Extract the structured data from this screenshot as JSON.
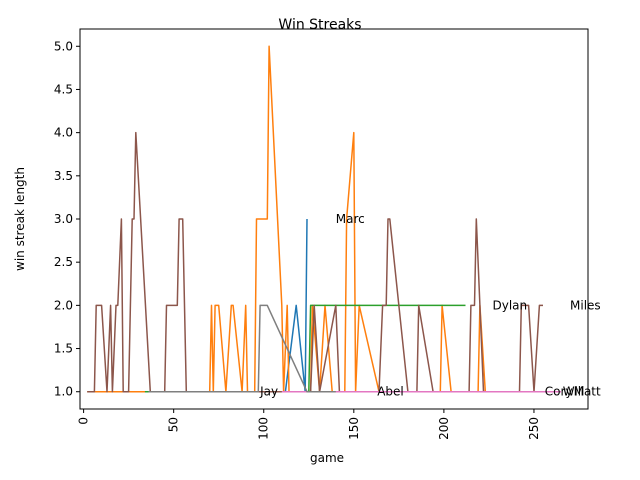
{
  "chart_data": {
    "type": "line",
    "title": "Win Streaks",
    "xlabel": "game",
    "ylabel": "win streak length",
    "xlim": [
      -2,
      280
    ],
    "ylim": [
      0.8,
      5.2
    ],
    "x_ticks": [
      0,
      50,
      100,
      150,
      200,
      250
    ],
    "y_ticks": [
      1.0,
      1.5,
      2.0,
      2.5,
      3.0,
      3.5,
      4.0,
      4.5,
      5.0
    ],
    "y_tick_labels": [
      "1.0",
      "1.5",
      "2.0",
      "2.5",
      "3.0",
      "3.5",
      "4.0",
      "4.5",
      "5.0"
    ],
    "x_tick_labels": [
      "0",
      "50",
      "100",
      "150",
      "200",
      "250"
    ],
    "grid": false,
    "series": [
      {
        "name": "Marc",
        "color": "#1f77b4",
        "points": [
          [
            112,
            1
          ],
          [
            118,
            2
          ],
          [
            123,
            1
          ],
          [
            124,
            3
          ]
        ]
      },
      {
        "name": "Jay",
        "color": "#ff7f0e",
        "points": [
          [
            2,
            1
          ],
          [
            70,
            1
          ],
          [
            71,
            2
          ],
          [
            72,
            1
          ],
          [
            73,
            2
          ],
          [
            75,
            2
          ],
          [
            79,
            1
          ],
          [
            82,
            2
          ],
          [
            83,
            2
          ],
          [
            88,
            1
          ],
          [
            90,
            2
          ],
          [
            91,
            1
          ],
          [
            95,
            1
          ],
          [
            96,
            3
          ],
          [
            102,
            3
          ],
          [
            103,
            5
          ],
          [
            110,
            2
          ],
          [
            111,
            1
          ],
          [
            113,
            2
          ],
          [
            114,
            1
          ],
          [
            126,
            1
          ],
          [
            127,
            2
          ],
          [
            131,
            1
          ],
          [
            134,
            2
          ],
          [
            138,
            1
          ],
          [
            145,
            1
          ],
          [
            146,
            3
          ],
          [
            150,
            4
          ],
          [
            151,
            1
          ],
          [
            153,
            2
          ],
          [
            164,
            1
          ],
          [
            198,
            1
          ],
          [
            199,
            2
          ],
          [
            204,
            1
          ],
          [
            219,
            1
          ],
          [
            220,
            2
          ],
          [
            223,
            1
          ],
          [
            250,
            1
          ]
        ]
      },
      {
        "name": "Dylan",
        "color": "#2ca02c",
        "points": [
          [
            34,
            1
          ],
          [
            125,
            1
          ],
          [
            126,
            2
          ],
          [
            212,
            2
          ]
        ]
      },
      {
        "name": "Abel",
        "color": "#d62728",
        "points": [
          [
            138,
            1
          ],
          [
            160,
            1
          ]
        ]
      },
      {
        "name": "Cory",
        "color": "#9467bd",
        "points": [
          [
            150,
            1
          ],
          [
            250,
            1
          ]
        ]
      },
      {
        "name": "Miles",
        "color": "#8c564b",
        "points": [
          [
            2,
            1
          ],
          [
            6,
            1
          ],
          [
            7,
            2
          ],
          [
            10,
            2
          ],
          [
            13,
            1
          ],
          [
            15,
            2
          ],
          [
            16,
            1
          ],
          [
            18,
            2
          ],
          [
            19,
            2
          ],
          [
            21,
            3
          ],
          [
            22,
            1
          ],
          [
            25,
            1
          ],
          [
            27,
            3
          ],
          [
            28,
            3
          ],
          [
            29,
            4
          ],
          [
            37,
            1
          ],
          [
            45,
            1
          ],
          [
            46,
            2
          ],
          [
            52,
            2
          ],
          [
            53,
            3
          ],
          [
            55,
            3
          ],
          [
            57,
            1
          ],
          [
            126,
            1
          ],
          [
            128,
            2
          ],
          [
            131,
            1
          ],
          [
            140,
            2
          ],
          [
            142,
            1
          ],
          [
            164,
            1
          ],
          [
            166,
            2
          ],
          [
            168,
            2
          ],
          [
            169,
            3
          ],
          [
            170,
            3
          ],
          [
            180,
            1
          ],
          [
            185,
            1
          ],
          [
            186,
            2
          ],
          [
            194,
            1
          ],
          [
            214,
            1
          ],
          [
            215,
            2
          ],
          [
            217,
            2
          ],
          [
            218,
            3
          ],
          [
            222,
            1
          ],
          [
            242,
            1
          ],
          [
            243,
            2
          ],
          [
            247,
            2
          ],
          [
            250,
            1
          ],
          [
            253,
            2
          ],
          [
            255,
            2
          ]
        ]
      },
      {
        "name": "Will",
        "color": "#e377c2",
        "points": [
          [
            110,
            1
          ],
          [
            265,
            1
          ]
        ]
      },
      {
        "name": "Matt",
        "color": "#7f7f7f",
        "points": [
          [
            36,
            1
          ],
          [
            97,
            1
          ],
          [
            98,
            2
          ],
          [
            102,
            2
          ],
          [
            124,
            1
          ],
          [
            140,
            1
          ]
        ]
      }
    ],
    "series_labels": [
      {
        "text": "Marc",
        "x": 140,
        "y": 3
      },
      {
        "text": "Jay",
        "x": 98,
        "y": 1
      },
      {
        "text": "Dylan",
        "x": 227,
        "y": 2
      },
      {
        "text": "Abel",
        "x": 163,
        "y": 1
      },
      {
        "text": "Cory",
        "x": 256,
        "y": 1
      },
      {
        "text": "Miles",
        "x": 270,
        "y": 2
      },
      {
        "text": "Will",
        "x": 266,
        "y": 1
      },
      {
        "text": "Matt",
        "x": 272,
        "y": 1
      }
    ]
  }
}
